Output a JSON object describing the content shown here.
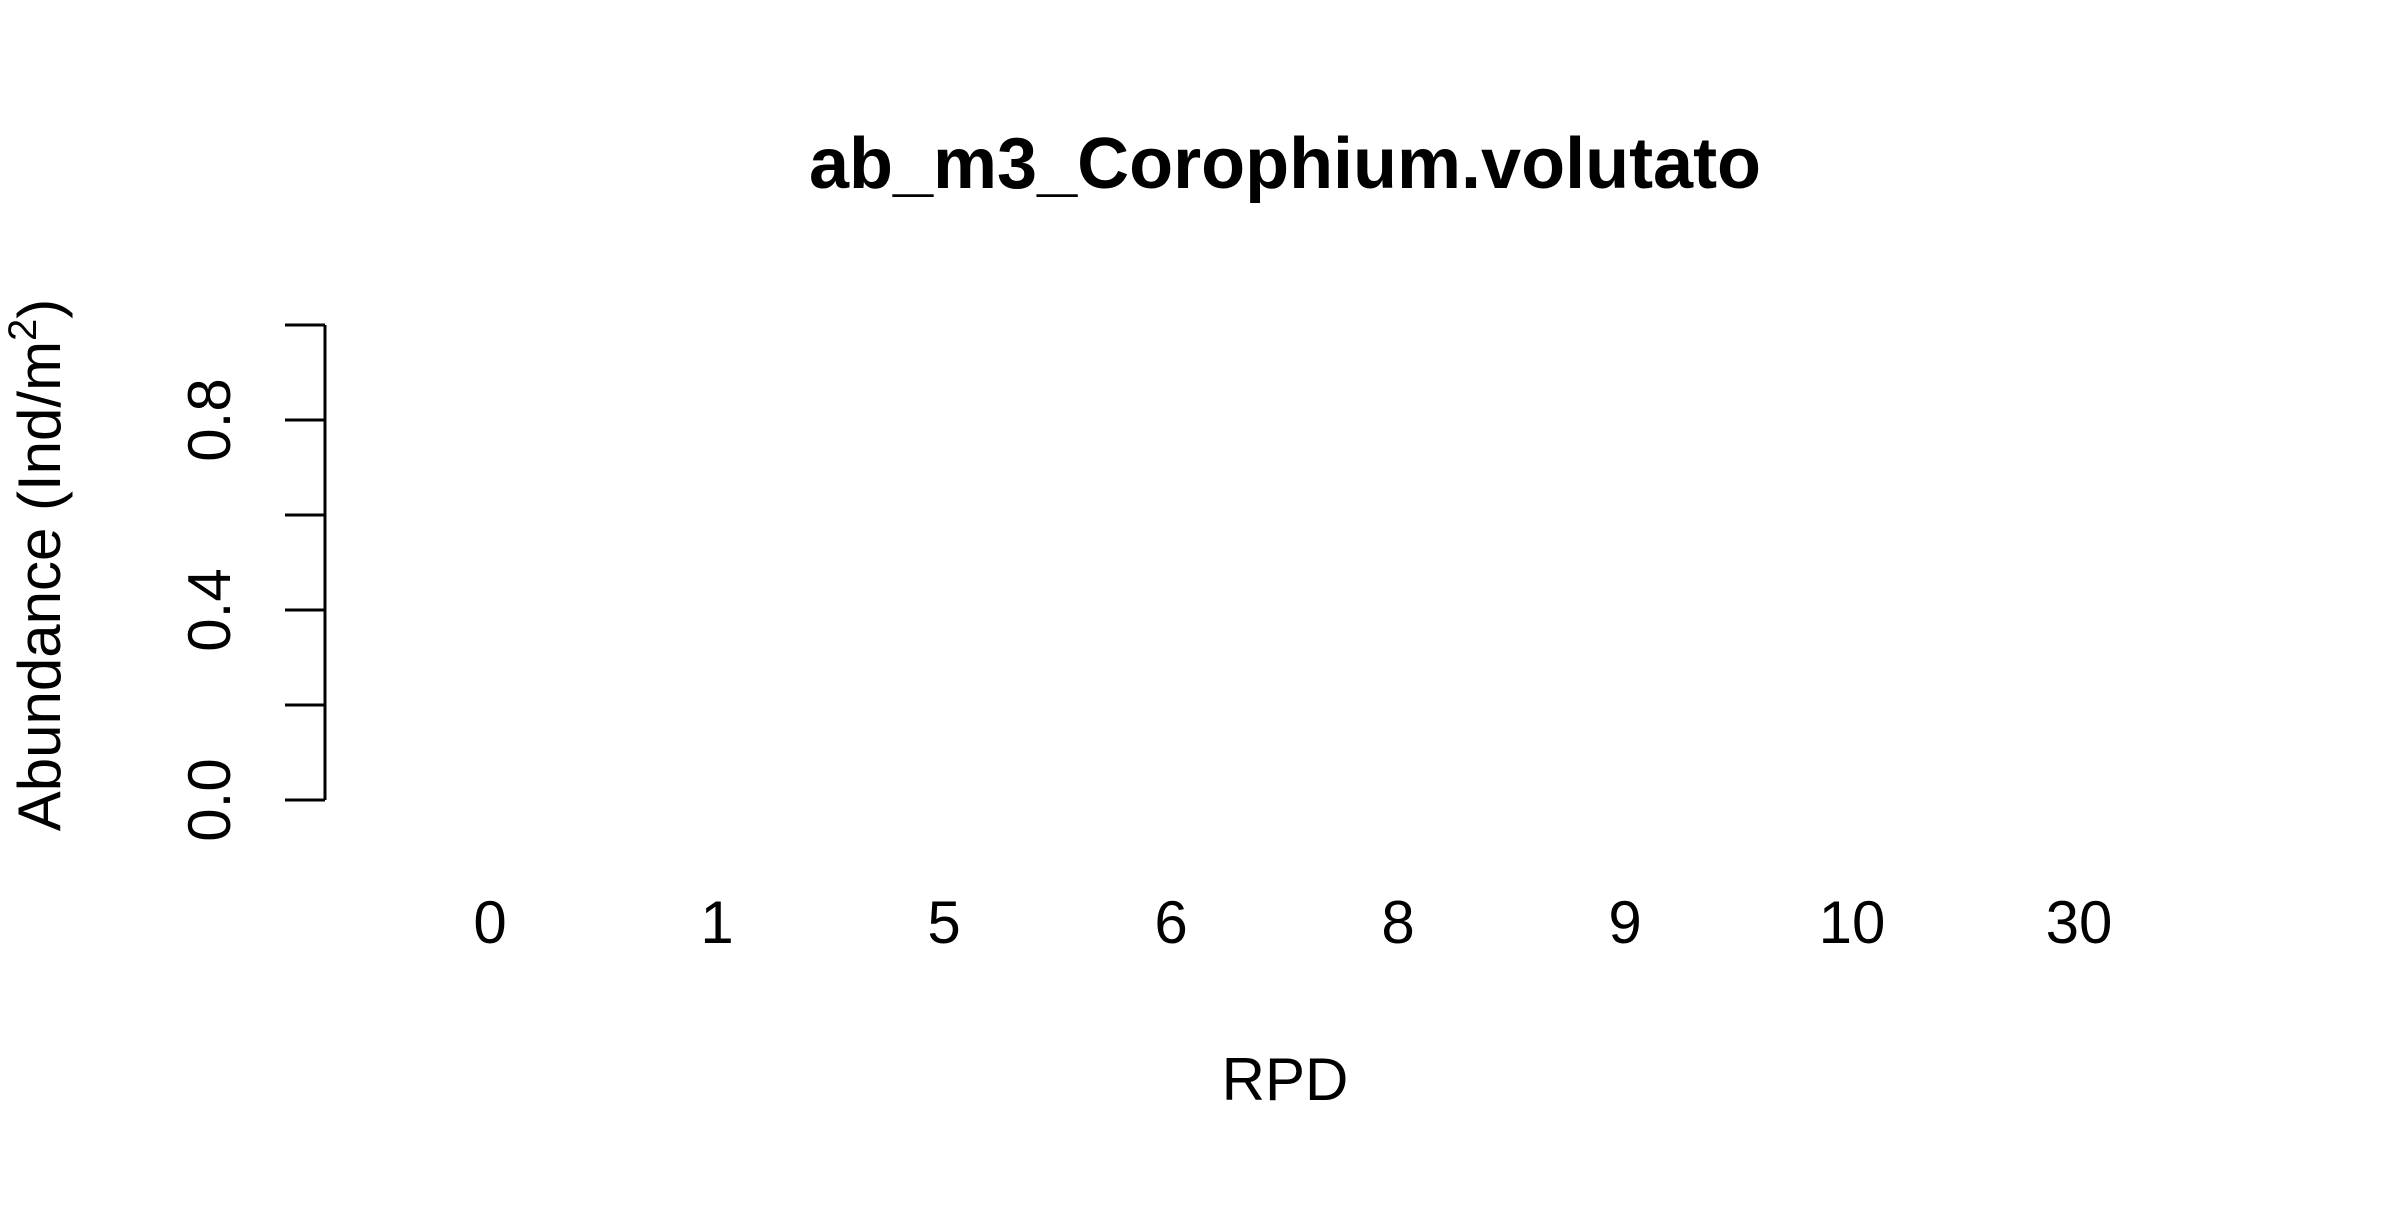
{
  "chart_data": {
    "type": "bar",
    "title": "ab_m3_Corophium.volutato",
    "xlabel": "RPD",
    "ylabel_main": "Abundance (Ind/m",
    "ylabel_sup": "2",
    "ylabel_close": ")",
    "categories": [
      "0",
      "1",
      "5",
      "6",
      "8",
      "9",
      "10",
      "30"
    ],
    "values": [
      0,
      0,
      0,
      0,
      0,
      0,
      0,
      0
    ],
    "ylim": [
      0,
      1
    ],
    "y_ticks": [
      0,
      0.2,
      0.4,
      0.6,
      0.8,
      1.0
    ],
    "y_tick_labels": [
      "0.0",
      "",
      "0.4",
      "",
      "0.8",
      ""
    ],
    "grid": false,
    "colors": {
      "axis": "#000000",
      "text": "#000000",
      "background": "#ffffff"
    }
  }
}
